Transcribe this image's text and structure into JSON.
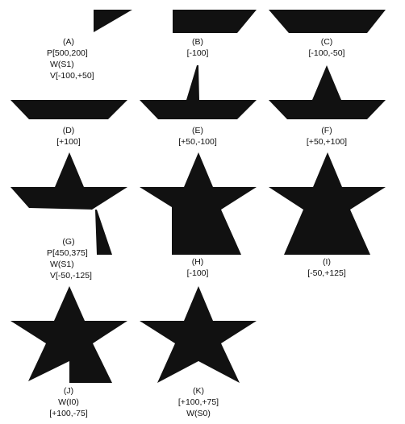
{
  "colors": {
    "fill": "#111111",
    "background": "#ffffff"
  },
  "panels": [
    {
      "id": "A",
      "caption": [
        "(A)",
        "P[500,200]",
        "W(S1)",
        "V[-100,+50]"
      ]
    },
    {
      "id": "B",
      "caption": [
        "(B)",
        "[-100]"
      ]
    },
    {
      "id": "C",
      "caption": [
        "(C)",
        "[-100,-50]"
      ]
    },
    {
      "id": "D",
      "caption": [
        "(D)",
        "[+100]"
      ]
    },
    {
      "id": "E",
      "caption": [
        "(E)",
        "[+50,-100]"
      ]
    },
    {
      "id": "F",
      "caption": [
        "(F)",
        "[+50,+100]"
      ]
    },
    {
      "id": "G",
      "caption": [
        "(G)",
        "P[450,375]",
        "W(S1)",
        "V[-50,-125]"
      ]
    },
    {
      "id": "H",
      "caption": [
        "(H)",
        "[-100]"
      ]
    },
    {
      "id": "I",
      "caption": [
        "(I)",
        "[-50,+125]"
      ]
    },
    {
      "id": "J",
      "caption": [
        "(J)",
        "W(I0)",
        "[+100,-75]"
      ]
    },
    {
      "id": "K",
      "caption": [
        "(K)",
        "[+100,+75]",
        "W(S0)"
      ]
    }
  ]
}
